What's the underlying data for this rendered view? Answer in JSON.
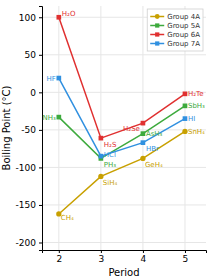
{
  "chart_data": {
    "type": "line",
    "x_label": "Period",
    "y_label": "Boiling Point (°C)",
    "x": [
      2,
      3,
      4,
      5
    ],
    "xlim": [
      1.6,
      5.5
    ],
    "ylim": [
      -210,
      115
    ],
    "xticks": [
      2,
      3,
      4,
      5
    ],
    "yticks": [
      -200,
      -150,
      -100,
      -50,
      0,
      50,
      100
    ],
    "grid": true,
    "legend": "upper right",
    "series": [
      {
        "name": "Group 4A",
        "color": "#c8a000",
        "marker": "circle",
        "values": [
          -162,
          -112,
          -88,
          -52
        ],
        "labels": [
          "CH₄",
          "SiH₄",
          "GeH₄",
          "SnH₄"
        ]
      },
      {
        "name": "Group 5A",
        "color": "#3daa3d",
        "marker": "square",
        "values": [
          -33,
          -88,
          -55,
          -18
        ],
        "labels": [
          "NH₃",
          "PH₃",
          "AsH₃",
          "SbH₃"
        ]
      },
      {
        "name": "Group 6A",
        "color": "#e03030",
        "marker": "square",
        "values": [
          100,
          -61,
          -41,
          -2
        ],
        "labels": [
          "H₂O",
          "H₂S",
          "H₂Se",
          "H₂Te"
        ]
      },
      {
        "name": "Group 7A",
        "color": "#3090e0",
        "marker": "square",
        "values": [
          19,
          -85,
          -67,
          -35
        ],
        "labels": [
          "HF",
          "HCl",
          "HBr",
          "HI"
        ]
      }
    ]
  }
}
